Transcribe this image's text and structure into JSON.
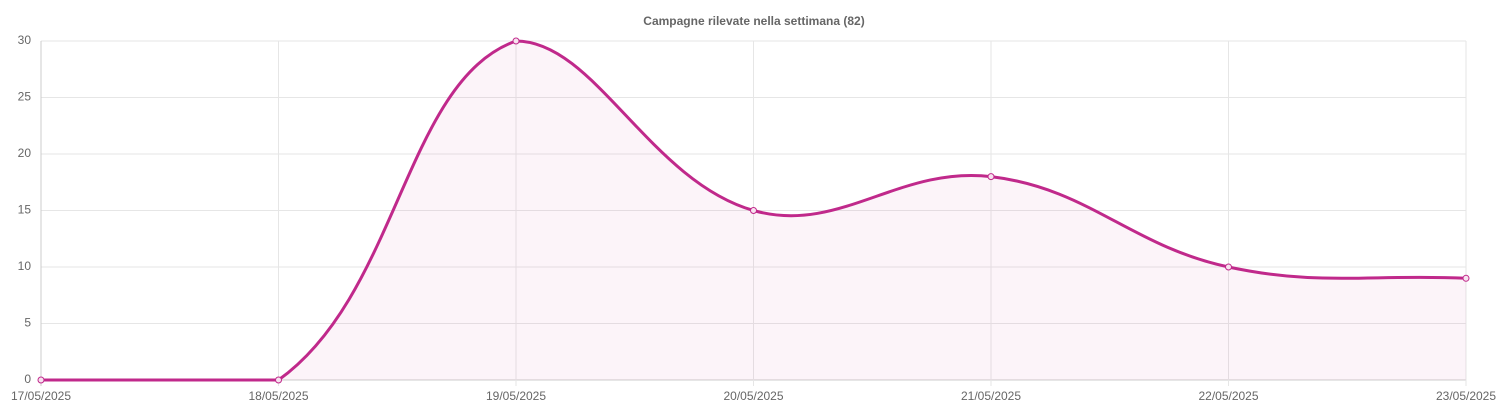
{
  "chart_data": {
    "type": "line",
    "title": "Campagne rilevate nella settimana (82)",
    "categories": [
      "17/05/2025",
      "18/05/2025",
      "19/05/2025",
      "20/05/2025",
      "21/05/2025",
      "22/05/2025",
      "23/05/2025"
    ],
    "values": [
      0,
      0,
      30,
      15,
      18,
      10,
      9
    ],
    "color": "#c0298b",
    "fill": true,
    "ylim": [
      0,
      30
    ],
    "yticks": [
      0,
      5,
      10,
      15,
      20,
      25,
      30
    ],
    "grid": true
  }
}
